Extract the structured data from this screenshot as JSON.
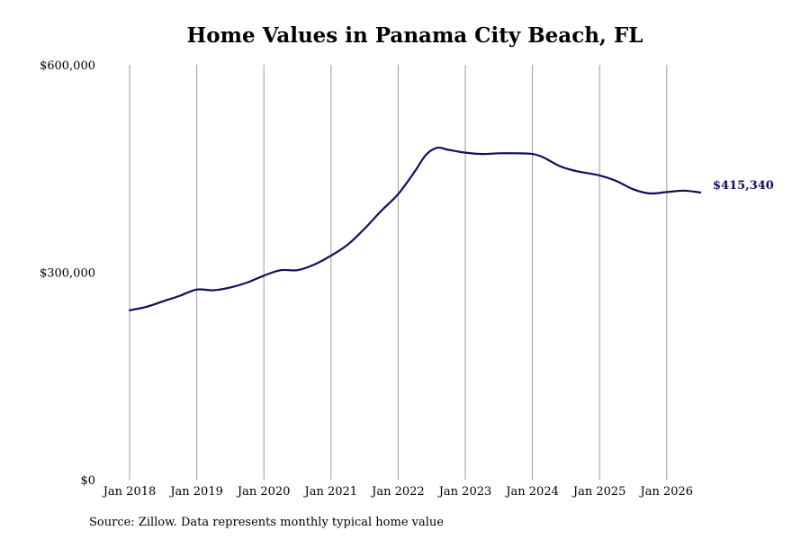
{
  "chart_data": {
    "type": "line",
    "title": "Home Values in Panama City Beach, FL",
    "xlabel": "",
    "ylabel": "",
    "ylim": [
      0,
      600000
    ],
    "y_ticks": [
      "$0",
      "$300,000",
      "$600,000"
    ],
    "x_ticks": [
      "Jan 2018",
      "Jan 2019",
      "Jan 2020",
      "Jan 2021",
      "Jan 2022",
      "Jan 2023",
      "Jan 2024",
      "Jan 2025",
      "Jan 2026"
    ],
    "grid": "vertical",
    "line_color": "#0f0f5a",
    "end_label": "$415,340",
    "series": [
      {
        "values": [
          [
            "2018-01",
            245000
          ],
          [
            "2018-04",
            250000
          ],
          [
            "2018-07",
            258000
          ],
          [
            "2018-10",
            266000
          ],
          [
            "2019-01",
            275000
          ],
          [
            "2019-04",
            274000
          ],
          [
            "2019-07",
            278000
          ],
          [
            "2019-10",
            285000
          ],
          [
            "2020-01",
            295000
          ],
          [
            "2020-04",
            303000
          ],
          [
            "2020-07",
            303000
          ],
          [
            "2020-10",
            311000
          ],
          [
            "2021-01",
            324000
          ],
          [
            "2021-04",
            340000
          ],
          [
            "2021-07",
            363000
          ],
          [
            "2021-10",
            389000
          ],
          [
            "2022-01",
            413000
          ],
          [
            "2022-04",
            446000
          ],
          [
            "2022-06",
            470000
          ],
          [
            "2022-08",
            480000
          ],
          [
            "2022-10",
            477000
          ],
          [
            "2023-01",
            473000
          ],
          [
            "2023-04",
            471000
          ],
          [
            "2023-07",
            472000
          ],
          [
            "2023-10",
            472000
          ],
          [
            "2024-01",
            471000
          ],
          [
            "2024-03",
            466000
          ],
          [
            "2024-06",
            453000
          ],
          [
            "2024-09",
            446000
          ],
          [
            "2025-01",
            440000
          ],
          [
            "2025-04",
            432000
          ],
          [
            "2025-07",
            420000
          ],
          [
            "2025-10",
            414000
          ],
          [
            "2026-01",
            416000
          ],
          [
            "2026-04",
            418000
          ],
          [
            "2026-07",
            415340
          ]
        ]
      }
    ]
  },
  "source": "Source: Zillow. Data represents monthly typical home value"
}
